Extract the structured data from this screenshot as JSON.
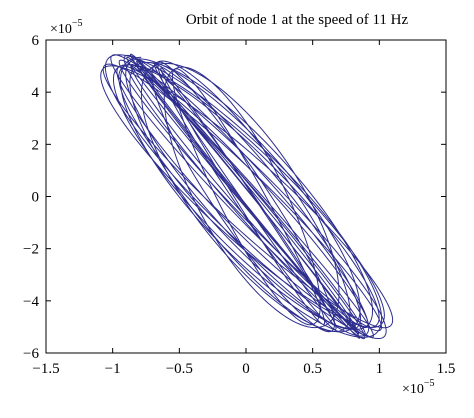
{
  "chart_data": {
    "type": "line",
    "title": "Orbit of node 1 at the speed of 11 Hz",
    "xlabel": "",
    "ylabel": "",
    "xlim": [
      -1.5,
      1.5
    ],
    "ylim": [
      -6,
      6
    ],
    "x_multiplier_label": "×10",
    "x_multiplier_exponent": "−5",
    "y_multiplier_label": "×10",
    "y_multiplier_exponent": "−5",
    "x_tick_values": [
      -1.5,
      -1,
      -0.5,
      0,
      0.5,
      1,
      1.5
    ],
    "x_tick_labels": [
      "−1.5",
      "−1",
      "−0.5",
      "0",
      "0.5",
      "1",
      "1.5"
    ],
    "y_tick_values": [
      -6,
      -4,
      -2,
      0,
      2,
      4,
      6
    ],
    "y_tick_labels": [
      "−6",
      "−4",
      "−2",
      "0",
      "2",
      "4",
      "6"
    ],
    "grid": false,
    "line_color": "#2e2e8f",
    "orbit": {
      "center": [
        0,
        0
      ],
      "major_axis_direction": [
        -0.78,
        5.3
      ],
      "semi_major_range": [
        4.85,
        5.55
      ],
      "semi_minor_range": [
        0.07,
        0.5
      ],
      "revolutions": 24
    }
  }
}
